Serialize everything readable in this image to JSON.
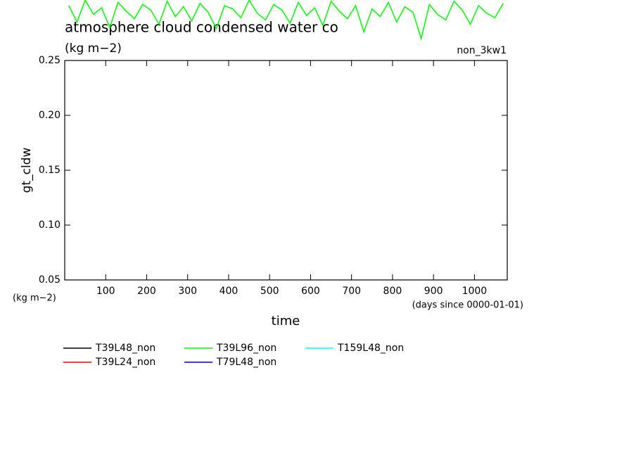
{
  "chart_data": {
    "type": "line",
    "title": "atmosphere cloud condensed water co",
    "subtitle": "(kg m−2)",
    "run_label": "non_3kw1",
    "y_label": "gt_cldw",
    "y_unit": "(kg m−2)",
    "x_label": "time",
    "x_unit": "(days since 0000-01-01)",
    "xlim": [
      0,
      1080
    ],
    "xticks": [
      100,
      200,
      300,
      400,
      500,
      600,
      700,
      800,
      900,
      1000
    ],
    "ylim": [
      0.05,
      0.25
    ],
    "yticks": [
      0.05,
      {
        "value": 0.1,
        "label": "0.10"
      },
      0.15,
      {
        "value": 0.2,
        "label": "0.20"
      },
      0.25
    ],
    "x": [
      10,
      30,
      50,
      70,
      90,
      110,
      130,
      150,
      170,
      190,
      210,
      230,
      250,
      270,
      290,
      310,
      330,
      350,
      370,
      390,
      410,
      430,
      450,
      470,
      490,
      510,
      530,
      550,
      570,
      590,
      610,
      630,
      650,
      670,
      690,
      710,
      730,
      750,
      770,
      790,
      810,
      830,
      850,
      870,
      890,
      910,
      930,
      950,
      970,
      990,
      1010,
      1030,
      1050,
      1070
    ],
    "series": [
      {
        "name": "T39L48_non",
        "color": "#000000",
        "values": [
          null,
          null,
          null,
          null,
          null,
          null,
          null,
          null,
          null,
          null,
          null,
          null,
          null,
          null,
          null,
          null,
          null,
          null,
          null,
          null,
          null,
          null,
          null,
          null,
          null,
          null,
          null,
          null,
          null,
          null,
          null,
          null,
          null,
          null,
          null,
          null,
          null,
          null,
          null,
          null,
          null,
          null,
          null,
          null,
          null,
          null,
          null,
          null,
          null,
          null,
          null,
          null,
          null,
          null
        ]
      },
      {
        "name": "T39L24_non",
        "color": "#ff0000",
        "values": [
          null,
          null,
          null,
          null,
          null,
          null,
          null,
          null,
          null,
          null,
          null,
          null,
          null,
          null,
          null,
          null,
          null,
          null,
          null,
          null,
          null,
          null,
          null,
          null,
          null,
          null,
          null,
          null,
          null,
          null,
          null,
          null,
          null,
          null,
          null,
          null,
          null,
          null,
          null,
          null,
          null,
          null,
          null,
          null,
          null,
          null,
          null,
          null,
          null,
          null,
          null,
          null,
          null,
          null
        ]
      },
      {
        "name": "T39L96_non",
        "color": "#00ff00",
        "values": [
          0.3,
          0.285,
          0.305,
          0.292,
          0.298,
          0.28,
          0.303,
          0.295,
          0.288,
          0.301,
          0.296,
          0.283,
          0.304,
          0.29,
          0.299,
          0.286,
          0.302,
          0.294,
          0.279,
          0.3,
          0.297,
          0.289,
          0.305,
          0.293,
          0.287,
          0.301,
          0.296,
          0.284,
          0.303,
          0.291,
          0.298,
          0.282,
          0.304,
          0.295,
          0.288,
          0.3,
          0.276,
          0.297,
          0.29,
          0.303,
          0.285,
          0.299,
          0.294,
          0.27,
          0.301,
          0.292,
          0.287,
          0.304,
          0.296,
          0.283,
          0.3,
          0.293,
          0.289,
          0.302
        ]
      },
      {
        "name": "T79L48_non",
        "color": "#0000cc",
        "values": [
          null,
          null,
          null,
          null,
          null,
          null,
          null,
          null,
          null,
          null,
          null,
          null,
          null,
          null,
          null,
          null,
          null,
          null,
          null,
          null,
          null,
          null,
          null,
          null,
          null,
          null,
          null,
          null,
          null,
          null,
          null,
          null,
          null,
          null,
          null,
          null,
          null,
          null,
          null,
          null,
          null,
          null,
          null,
          null,
          null,
          null,
          null,
          null,
          null,
          null,
          null,
          null,
          null,
          null
        ]
      },
      {
        "name": "T159L48_non",
        "color": "#00ffff",
        "values": [
          null,
          null,
          null,
          null,
          null,
          null,
          null,
          null,
          null,
          null,
          null,
          null,
          null,
          null,
          null,
          null,
          null,
          null,
          null,
          null,
          null,
          null,
          null,
          null,
          null,
          null,
          null,
          null,
          null,
          null,
          null,
          null,
          null,
          null,
          null,
          null,
          null,
          null,
          null,
          null,
          null,
          null,
          null,
          null,
          null,
          null,
          null,
          null,
          null,
          null,
          null,
          null,
          null,
          null
        ]
      }
    ]
  }
}
